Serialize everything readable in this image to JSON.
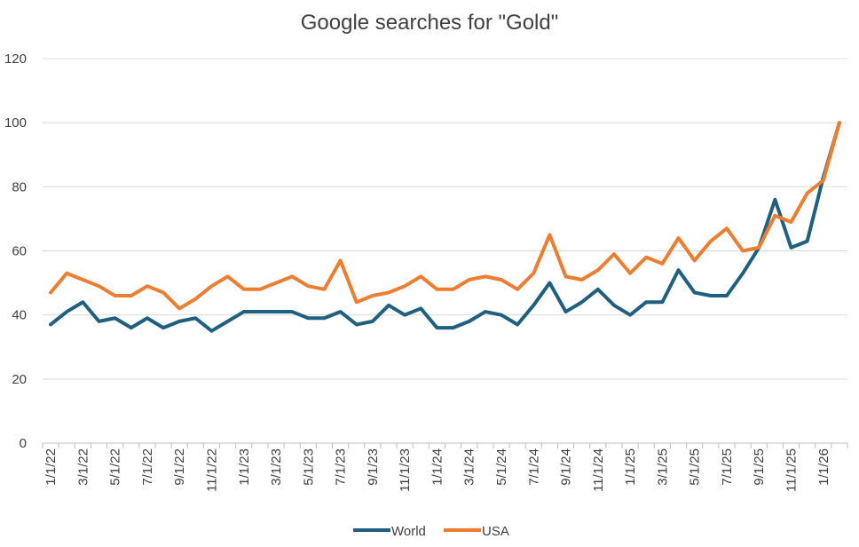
{
  "chart_data": {
    "type": "line",
    "title": "Google searches for \"Gold\"",
    "xlabel": "",
    "ylabel": "",
    "ylim": [
      0,
      120
    ],
    "yticks": [
      0,
      20,
      40,
      60,
      80,
      100,
      120
    ],
    "grid": true,
    "legend_position": "bottom",
    "x": [
      "1/1/22",
      "2/1/22",
      "3/1/22",
      "4/1/22",
      "5/1/22",
      "6/1/22",
      "7/1/22",
      "8/1/22",
      "9/1/22",
      "10/1/22",
      "11/1/22",
      "12/1/22",
      "1/1/23",
      "2/1/23",
      "3/1/23",
      "4/1/23",
      "5/1/23",
      "6/1/23",
      "7/1/23",
      "8/1/23",
      "9/1/23",
      "10/1/23",
      "11/1/23",
      "12/1/23",
      "1/1/24",
      "2/1/24",
      "3/1/24",
      "4/1/24",
      "5/1/24",
      "6/1/24",
      "7/1/24",
      "8/1/24",
      "9/1/24",
      "10/1/24",
      "11/1/24",
      "12/1/24",
      "1/1/25",
      "2/1/25",
      "3/1/25",
      "4/1/25",
      "5/1/25",
      "6/1/25",
      "7/1/25",
      "8/1/25",
      "9/1/25",
      "10/1/25",
      "11/1/25",
      "12/1/25",
      "1/1/26",
      "2/1/26"
    ],
    "tick_labels": [
      "1/1/22",
      "3/1/22",
      "5/1/22",
      "7/1/22",
      "9/1/22",
      "11/1/22",
      "1/1/23",
      "3/1/23",
      "5/1/23",
      "7/1/23",
      "9/1/23",
      "11/1/23",
      "1/1/24",
      "3/1/24",
      "5/1/24",
      "7/1/24",
      "9/1/24",
      "11/1/24",
      "1/1/25",
      "3/1/25",
      "5/1/25",
      "7/1/25",
      "9/1/25",
      "11/1/25",
      "1/1/26"
    ],
    "series": [
      {
        "name": "World",
        "color": "#1f5f7f",
        "values": [
          37,
          41,
          44,
          38,
          39,
          36,
          39,
          36,
          38,
          39,
          35,
          38,
          41,
          41,
          41,
          41,
          39,
          39,
          41,
          37,
          38,
          43,
          40,
          42,
          36,
          36,
          38,
          41,
          40,
          37,
          43,
          50,
          41,
          44,
          48,
          43,
          40,
          44,
          44,
          54,
          47,
          46,
          46,
          53,
          61,
          76,
          61,
          63,
          83,
          100
        ]
      },
      {
        "name": "USA",
        "color": "#ed7d31",
        "values": [
          47,
          53,
          51,
          49,
          46,
          46,
          49,
          47,
          42,
          45,
          49,
          52,
          48,
          48,
          50,
          52,
          49,
          48,
          57,
          44,
          46,
          47,
          49,
          52,
          48,
          48,
          51,
          52,
          51,
          48,
          53,
          65,
          52,
          51,
          54,
          59,
          53,
          58,
          56,
          64,
          57,
          63,
          67,
          60,
          61,
          71,
          69,
          78,
          82,
          100
        ]
      }
    ]
  }
}
